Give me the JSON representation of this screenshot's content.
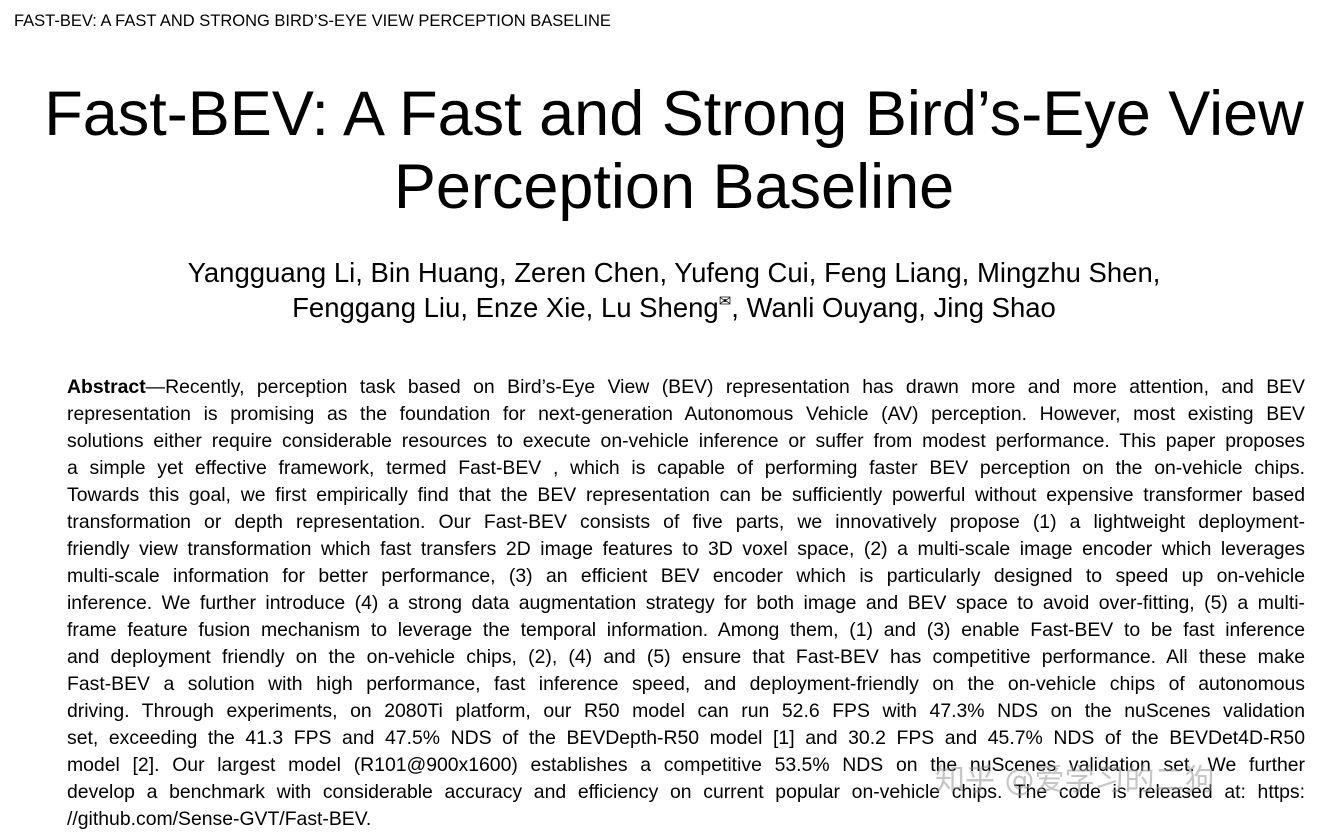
{
  "running_header": "FAST-BEV: A FAST AND STRONG BIRD’S-EYE VIEW PERCEPTION BASELINE",
  "title": {
    "line1": "Fast-BEV: A Fast and Strong Bird’s-Eye View",
    "line2": "Perception Baseline"
  },
  "authors": {
    "line1": "Yangguang Li, Bin Huang, Zeren Chen, Yufeng Cui, Feng Liang, Mingzhu Shen,",
    "line2_before": "Fenggang Liu, Enze Xie, Lu Sheng",
    "corresponding_mark": "✉",
    "line2_after": ", Wanli Ouyang, Jing Shao"
  },
  "abstract": {
    "heading": "Abstract",
    "lines": [
      "—Recently, perception task based on Bird’s-Eye View (BEV) representation has drawn more and more attention, and BEV",
      "representation is promising as the foundation for next-generation Autonomous Vehicle (AV) perception. However, most existing BEV",
      "solutions either require considerable resources to execute on-vehicle inference or suffer from modest performance. This paper proposes",
      "a simple yet effective framework, termed Fast-BEV , which is capable of performing faster BEV perception on the on-vehicle chips.",
      "Towards this goal, we first empirically find that the BEV representation can be sufficiently powerful without expensive transformer based",
      "transformation or depth representation. Our Fast-BEV consists of five parts, we innovatively propose (1) a lightweight deployment-",
      "friendly view transformation which fast transfers 2D image features to 3D voxel space, (2) a multi-scale image encoder which leverages",
      "multi-scale information for better performance, (3) an efficient BEV encoder which is particularly designed to speed up on-vehicle",
      "inference. We further introduce (4) a strong data augmentation strategy for both image and BEV space to avoid over-fitting, (5) a multi-",
      "frame feature fusion mechanism to leverage the temporal information. Among them, (1) and (3) enable Fast-BEV to be fast inference",
      "and deployment friendly on the on-vehicle chips, (2), (4) and (5) ensure that Fast-BEV has competitive performance. All these make",
      "Fast-BEV a solution with high performance, fast inference speed, and deployment-friendly on the on-vehicle chips of autonomous",
      "driving. Through experiments, on 2080Ti platform, our R50 model can run 52.6 FPS with 47.3% NDS on the nuScenes validation",
      "set, exceeding the 41.3 FPS and 47.5% NDS of the BEVDepth-R50 model [1] and 30.2 FPS and 45.7% NDS of the BEVDet4D-R50",
      "model [2]. Our largest model (R101@900x1600) establishes a competitive 53.5% NDS on the nuScenes validation set. We further",
      "develop a benchmark with considerable accuracy and efficiency on current popular on-vehicle chips. The code is released at: https:",
      "//github.com/Sense-GVT/Fast-BEV."
    ]
  },
  "watermark": "知乎 @爱学习的二狗"
}
